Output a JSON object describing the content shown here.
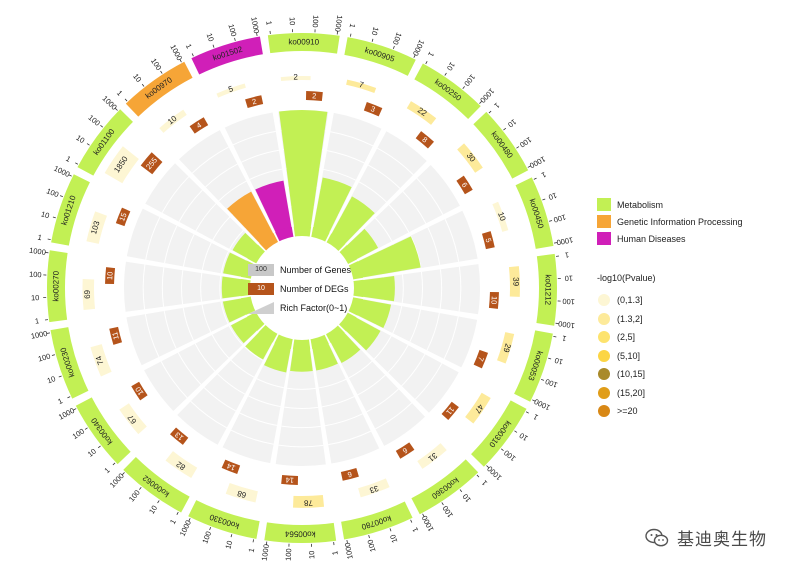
{
  "chart_data": {
    "type": "circos-go-enrichment",
    "title": "",
    "rich_factor_range": [
      0,
      1
    ],
    "entries": [
      {
        "id": "ko00910",
        "category": "Metabolism",
        "genes": 2,
        "degs": 2,
        "rich_factor": 1.0,
        "pvalue_class": "(0,1.3]"
      },
      {
        "id": "ko00905",
        "category": "Metabolism",
        "genes": 7,
        "degs": 3,
        "rich_factor": 0.43,
        "pvalue_class": "(1.3,2]"
      },
      {
        "id": "ko00250",
        "category": "Metabolism",
        "genes": 22,
        "degs": 8,
        "rich_factor": 0.36,
        "pvalue_class": "(1.3,2]"
      },
      {
        "id": "ko00480",
        "category": "Metabolism",
        "genes": 30,
        "degs": 6,
        "rich_factor": 0.2,
        "pvalue_class": "(1.3,2]"
      },
      {
        "id": "ko00450",
        "category": "Metabolism",
        "genes": 10,
        "degs": 5,
        "rich_factor": 0.5,
        "pvalue_class": "(0,1.3]"
      },
      {
        "id": "ko01212",
        "category": "Metabolism",
        "genes": 39,
        "degs": 10,
        "rich_factor": 0.26,
        "pvalue_class": "(1.3,2]"
      },
      {
        "id": "ko00053",
        "category": "Metabolism",
        "genes": 29,
        "degs": 7,
        "rich_factor": 0.24,
        "pvalue_class": "(1.3,2]"
      },
      {
        "id": "ko00310",
        "category": "Metabolism",
        "genes": 47,
        "degs": 11,
        "rich_factor": 0.23,
        "pvalue_class": "(1.3,2]"
      },
      {
        "id": "ko00360",
        "category": "Metabolism",
        "genes": 31,
        "degs": 6,
        "rich_factor": 0.19,
        "pvalue_class": "(0,1.3]"
      },
      {
        "id": "ko00780",
        "category": "Metabolism",
        "genes": 33,
        "degs": 6,
        "rich_factor": 0.18,
        "pvalue_class": "(0,1.3]"
      },
      {
        "id": "ko00564",
        "category": "Metabolism",
        "genes": 78,
        "degs": 14,
        "rich_factor": 0.18,
        "pvalue_class": "(1.3,2]"
      },
      {
        "id": "ko00330",
        "category": "Metabolism",
        "genes": 68,
        "degs": 14,
        "rich_factor": 0.2,
        "pvalue_class": "(0,1.3]"
      },
      {
        "id": "ko00062",
        "category": "Metabolism",
        "genes": 82,
        "degs": 13,
        "rich_factor": 0.16,
        "pvalue_class": "(0,1.3]"
      },
      {
        "id": "ko00340",
        "category": "Metabolism",
        "genes": 67,
        "degs": 10,
        "rich_factor": 0.15,
        "pvalue_class": "(0,1.3]"
      },
      {
        "id": "ko00230",
        "category": "Metabolism",
        "genes": 74,
        "degs": 11,
        "rich_factor": 0.15,
        "pvalue_class": "(0,1.3]"
      },
      {
        "id": "ko00270",
        "category": "Metabolism",
        "genes": 69,
        "degs": 10,
        "rich_factor": 0.15,
        "pvalue_class": "(0,1.3]"
      },
      {
        "id": "ko01210",
        "category": "Metabolism",
        "genes": 103,
        "degs": 15,
        "rich_factor": 0.15,
        "pvalue_class": "(0,1.3]"
      },
      {
        "id": "ko01100",
        "category": "Metabolism",
        "genes": 1850,
        "degs": 255,
        "rich_factor": 0.14,
        "pvalue_class": "(0,1.3]"
      },
      {
        "id": "ko00970",
        "category": "Genetic Information Processing",
        "genes": 10,
        "degs": 4,
        "rich_factor": 0.4,
        "pvalue_class": "(0,1.3]"
      },
      {
        "id": "ko01502",
        "category": "Human Diseases",
        "genes": 5,
        "degs": 2,
        "rich_factor": 0.4,
        "pvalue_class": "(0,1.3]"
      }
    ],
    "scale_ticks": [
      "1",
      "10",
      "100",
      "1000"
    ],
    "category_colors": {
      "Metabolism": "#c2f054",
      "Genetic Information Processing": "#f6a537",
      "Human Diseases": "#d01fb8"
    },
    "pvalue_colors": {
      "(0,1.3]": "#fdf6d4",
      "(1.3,2]": "#fdea9a",
      "(2,5]": "#fde36e",
      "(5,10]": "#fcd544",
      "(10,15]": "#a98a2a",
      "(15,20]": "#e09d19",
      ">=20": "#d88816"
    },
    "deg_color": "#b5541b",
    "gene_bar_color": "#c8c8c8",
    "rich_bar_color": "#cfcfcf"
  },
  "legend": {
    "categories": [
      "Metabolism",
      "Genetic Information Processing",
      "Human Diseases"
    ],
    "pvalue_title": "-log10(Pvalue)",
    "pvalue_classes": [
      "(0,1.3]",
      "(1.3,2]",
      "(2,5]",
      "(5,10]",
      "(10,15]",
      "(15,20]",
      ">=20"
    ]
  },
  "center_legend": {
    "genes_label": "Number of Genes",
    "genes_value": "100",
    "degs_label": "Number of DEGs",
    "degs_value": "10",
    "rich_label": "Rich Factor(0~1)"
  },
  "watermark": {
    "text": "基迪奥生物"
  }
}
